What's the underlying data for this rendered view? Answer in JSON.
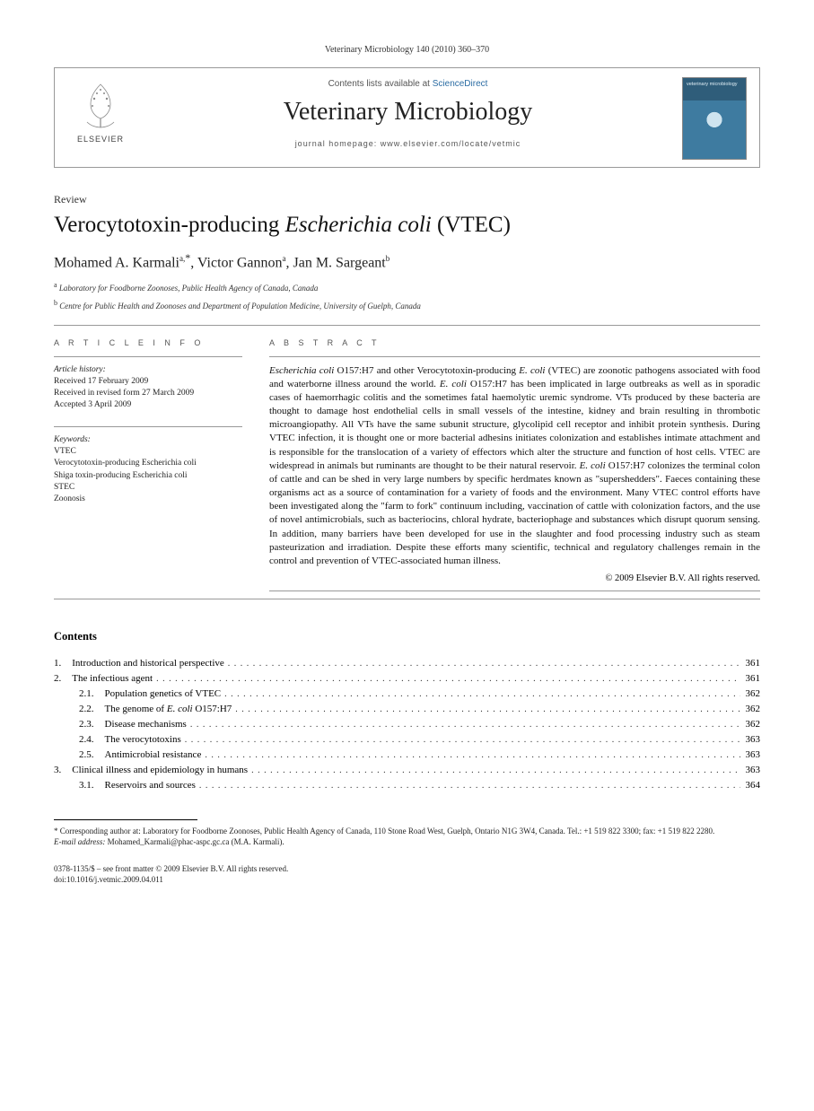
{
  "running_head": "Veterinary Microbiology 140 (2010) 360–370",
  "masthead": {
    "contents_prefix": "Contents lists available at ",
    "contents_link": "ScienceDirect",
    "journal": "Veterinary Microbiology",
    "homepage_label": "journal homepage: ",
    "homepage_url": "www.elsevier.com/locate/vetmic",
    "publisher_wordmark": "ELSEVIER",
    "cover_text": "veterinary microbiology"
  },
  "article_type": "Review",
  "title_plain": "Verocytotoxin-producing ",
  "title_ital": "Escherichia coli",
  "title_tail": " (VTEC)",
  "authors_html": "Mohamed A. Karmali",
  "author1_sup": "a,",
  "author1_corr": "*",
  "author2": ", Victor Gannon",
  "author2_sup": "a",
  "author3": ", Jan M. Sargeant",
  "author3_sup": "b",
  "affiliations": {
    "a": "Laboratory for Foodborne Zoonoses, Public Health Agency of Canada, Canada",
    "b": "Centre for Public Health and Zoonoses and Department of Population Medicine, University of Guelph, Canada"
  },
  "info": {
    "head": "A R T I C L E   I N F O",
    "history_label": "Article history:",
    "received": "Received 17 February 2009",
    "revised": "Received in revised form 27 March 2009",
    "accepted": "Accepted 3 April 2009",
    "keywords_label": "Keywords:",
    "keywords": [
      "VTEC",
      "Verocytotoxin-producing Escherichia coli",
      "Shiga toxin-producing Escherichia coli",
      "STEC",
      "Zoonosis"
    ]
  },
  "abstract": {
    "head": "A B S T R A C T",
    "text": "Escherichia coli O157:H7 and other Verocytotoxin-producing E. coli (VTEC) are zoonotic pathogens associated with food and waterborne illness around the world. E. coli O157:H7 has been implicated in large outbreaks as well as in sporadic cases of haemorrhagic colitis and the sometimes fatal haemolytic uremic syndrome. VTs produced by these bacteria are thought to damage host endothelial cells in small vessels of the intestine, kidney and brain resulting in thrombotic microangiopathy. All VTs have the same subunit structure, glycolipid cell receptor and inhibit protein synthesis. During VTEC infection, it is thought one or more bacterial adhesins initiates colonization and establishes intimate attachment and is responsible for the translocation of a variety of effectors which alter the structure and function of host cells. VTEC are widespread in animals but ruminants are thought to be their natural reservoir. E. coli O157:H7 colonizes the terminal colon of cattle and can be shed in very large numbers by specific herdmates known as \"supershedders\". Faeces containing these organisms act as a source of contamination for a variety of foods and the environment. Many VTEC control efforts have been investigated along the \"farm to fork\" continuum including, vaccination of cattle with colonization factors, and the use of novel antimicrobials, such as bacteriocins, chloral hydrate, bacteriophage and substances which disrupt quorum sensing. In addition, many barriers have been developed for use in the slaughter and food processing industry such as steam pasteurization and irradiation. Despite these efforts many scientific, technical and regulatory challenges remain in the control and prevention of VTEC-associated human illness.",
    "copyright": "© 2009 Elsevier B.V. All rights reserved."
  },
  "contents_heading": "Contents",
  "toc": [
    {
      "num": "1.",
      "label": "Introduction and historical perspective",
      "page": "361",
      "sub": false
    },
    {
      "num": "2.",
      "label": "The infectious agent",
      "page": "361",
      "sub": false
    },
    {
      "num": "2.1.",
      "label": "Population genetics of VTEC",
      "page": "362",
      "sub": true
    },
    {
      "num": "2.2.",
      "label": "The genome of E. coli O157:H7",
      "page": "362",
      "sub": true,
      "ital_span": "E. coli"
    },
    {
      "num": "2.3.",
      "label": "Disease mechanisms",
      "page": "362",
      "sub": true
    },
    {
      "num": "2.4.",
      "label": "The verocytotoxins",
      "page": "363",
      "sub": true
    },
    {
      "num": "2.5.",
      "label": "Antimicrobial resistance",
      "page": "363",
      "sub": true
    },
    {
      "num": "3.",
      "label": "Clinical illness and epidemiology in humans",
      "page": "363",
      "sub": false
    },
    {
      "num": "3.1.",
      "label": "Reservoirs and sources",
      "page": "364",
      "sub": true
    }
  ],
  "footnote": {
    "corr": "* Corresponding author at: Laboratory for Foodborne Zoonoses, Public Health Agency of Canada, 110 Stone Road West, Guelph, Ontario N1G 3W4, Canada. Tel.: +1 519 822 3300; fax: +1 519 822 2280.",
    "email_label": "E-mail address:",
    "email": "Mohamed_Karmali@phac-aspc.gc.ca",
    "email_tail": " (M.A. Karmali)."
  },
  "footer": {
    "line1": "0378-1135/$ – see front matter © 2009 Elsevier B.V. All rights reserved.",
    "line2": "doi:10.1016/j.vetmic.2009.04.011"
  },
  "colors": {
    "rule": "#999999",
    "link": "#2b6ca3",
    "cover_top": "#2f5d7a",
    "cover_body": "#3e7ba0"
  }
}
